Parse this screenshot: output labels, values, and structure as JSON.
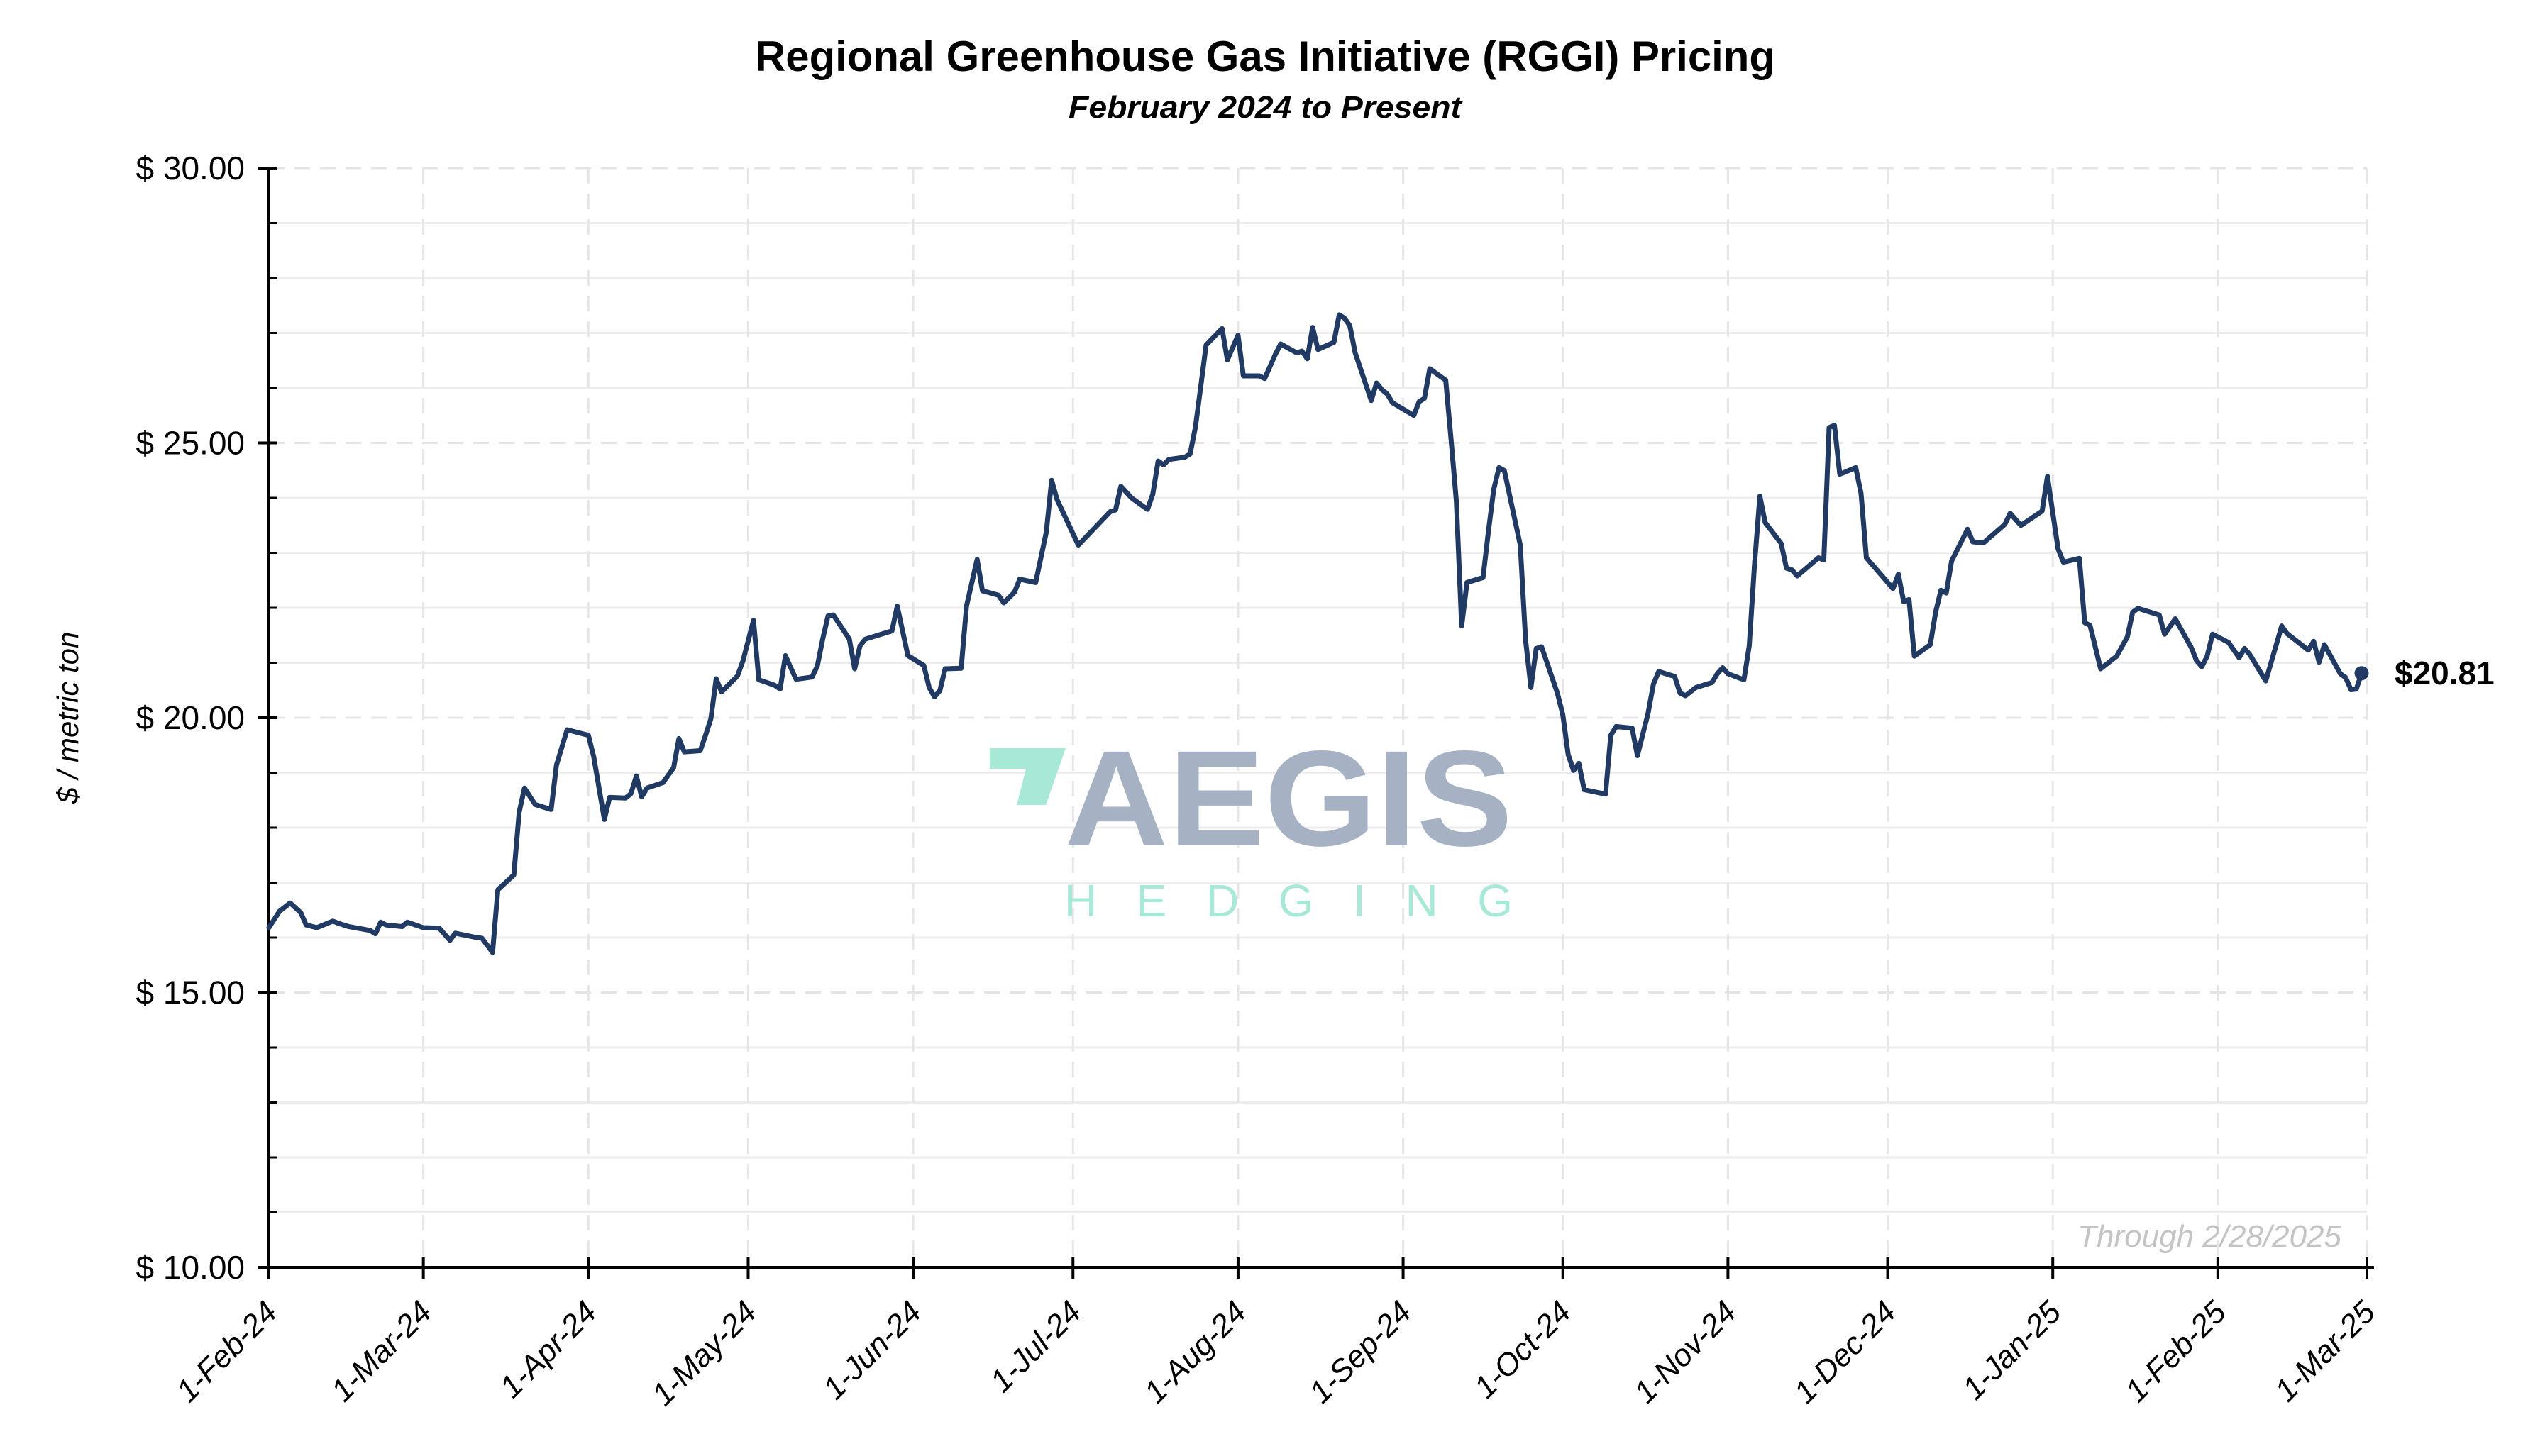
{
  "chart_data": {
    "type": "line",
    "title": "Regional Greenhouse Gas Initiative (RGGI) Pricing",
    "subtitle": "February 2024 to Present",
    "xlabel": "",
    "ylabel": "$ / metric ton",
    "xlim": [
      "2024-02-01",
      "2025-03-01"
    ],
    "ylim": [
      10,
      30
    ],
    "grid": true,
    "y_ticks": [
      {
        "value": 10,
        "label": "$ 10.00"
      },
      {
        "value": 15,
        "label": "$ 15.00"
      },
      {
        "value": 20,
        "label": "$ 20.00"
      },
      {
        "value": 25,
        "label": "$ 25.00"
      },
      {
        "value": 30,
        "label": "$ 30.00"
      }
    ],
    "x_ticks": [
      {
        "date": "2024-02-01",
        "label": "1-Feb-24"
      },
      {
        "date": "2024-03-01",
        "label": "1-Mar-24"
      },
      {
        "date": "2024-04-01",
        "label": "1-Apr-24"
      },
      {
        "date": "2024-05-01",
        "label": "1-May-24"
      },
      {
        "date": "2024-06-01",
        "label": "1-Jun-24"
      },
      {
        "date": "2024-07-01",
        "label": "1-Jul-24"
      },
      {
        "date": "2024-08-01",
        "label": "1-Aug-24"
      },
      {
        "date": "2024-09-01",
        "label": "1-Sep-24"
      },
      {
        "date": "2024-10-01",
        "label": "1-Oct-24"
      },
      {
        "date": "2024-11-01",
        "label": "1-Nov-24"
      },
      {
        "date": "2024-12-01",
        "label": "1-Dec-24"
      },
      {
        "date": "2025-01-01",
        "label": "1-Jan-25"
      },
      {
        "date": "2025-02-01",
        "label": "1-Feb-25"
      },
      {
        "date": "2025-03-01",
        "label": "1-Mar-25"
      }
    ],
    "annotation_through": "Through 2/28/2025",
    "last_value_label": "$20.81",
    "line_color": "#213a64",
    "series": [
      {
        "name": "RGGI Price",
        "x": [
          "2024-02-01",
          "2024-02-03",
          "2024-02-05",
          "2024-02-07",
          "2024-02-08",
          "2024-02-10",
          "2024-02-13",
          "2024-02-14",
          "2024-02-16",
          "2024-02-20",
          "2024-02-21",
          "2024-02-22",
          "2024-02-23",
          "2024-02-26",
          "2024-02-27",
          "2024-03-01",
          "2024-03-04",
          "2024-03-06",
          "2024-03-07",
          "2024-03-11",
          "2024-03-12",
          "2024-03-14",
          "2024-03-15",
          "2024-03-18",
          "2024-03-19",
          "2024-03-20",
          "2024-03-22",
          "2024-03-25",
          "2024-03-26",
          "2024-03-28",
          "2024-04-01",
          "2024-04-02",
          "2024-04-04",
          "2024-04-05",
          "2024-04-08",
          "2024-04-09",
          "2024-04-10",
          "2024-04-11",
          "2024-04-12",
          "2024-04-15",
          "2024-04-17",
          "2024-04-18",
          "2024-04-19",
          "2024-04-22",
          "2024-04-23",
          "2024-04-24",
          "2024-04-25",
          "2024-04-26",
          "2024-04-29",
          "2024-04-30",
          "2024-05-02",
          "2024-05-03",
          "2024-05-06",
          "2024-05-07",
          "2024-05-08",
          "2024-05-09",
          "2024-05-10",
          "2024-05-13",
          "2024-05-14",
          "2024-05-15",
          "2024-05-16",
          "2024-05-17",
          "2024-05-20",
          "2024-05-21",
          "2024-05-22",
          "2024-05-23",
          "2024-05-28",
          "2024-05-29",
          "2024-05-31",
          "2024-06-03",
          "2024-06-04",
          "2024-06-05",
          "2024-06-06",
          "2024-06-07",
          "2024-06-10",
          "2024-06-11",
          "2024-06-13",
          "2024-06-14",
          "2024-06-17",
          "2024-06-18",
          "2024-06-20",
          "2024-06-21",
          "2024-06-24",
          "2024-06-26",
          "2024-06-27",
          "2024-06-28",
          "2024-07-02",
          "2024-07-08",
          "2024-07-09",
          "2024-07-10",
          "2024-07-12",
          "2024-07-15",
          "2024-07-16",
          "2024-07-17",
          "2024-07-18",
          "2024-07-19",
          "2024-07-22",
          "2024-07-23",
          "2024-07-24",
          "2024-07-25",
          "2024-07-26",
          "2024-07-29",
          "2024-07-30",
          "2024-08-01",
          "2024-08-02",
          "2024-08-05",
          "2024-08-06",
          "2024-08-08",
          "2024-08-09",
          "2024-08-12",
          "2024-08-13",
          "2024-08-14",
          "2024-08-15",
          "2024-08-16",
          "2024-08-19",
          "2024-08-20",
          "2024-08-21",
          "2024-08-22",
          "2024-08-23",
          "2024-08-26",
          "2024-08-27",
          "2024-08-28",
          "2024-08-29",
          "2024-08-30",
          "2024-09-03",
          "2024-09-04",
          "2024-09-05",
          "2024-09-06",
          "2024-09-09",
          "2024-09-10",
          "2024-09-11",
          "2024-09-12",
          "2024-09-13",
          "2024-09-16",
          "2024-09-17",
          "2024-09-18",
          "2024-09-19",
          "2024-09-20",
          "2024-09-23",
          "2024-09-24",
          "2024-09-25",
          "2024-09-26",
          "2024-09-27",
          "2024-09-30",
          "2024-10-01",
          "2024-10-02",
          "2024-10-03",
          "2024-10-04",
          "2024-10-05",
          "2024-10-09",
          "2024-10-10",
          "2024-10-11",
          "2024-10-14",
          "2024-10-15",
          "2024-10-17",
          "2024-10-18",
          "2024-10-19",
          "2024-10-22",
          "2024-10-23",
          "2024-10-24",
          "2024-10-26",
          "2024-10-29",
          "2024-10-30",
          "2024-10-31",
          "2024-11-01",
          "2024-11-04",
          "2024-11-05",
          "2024-11-06",
          "2024-11-07",
          "2024-11-08",
          "2024-11-11",
          "2024-11-12",
          "2024-11-13",
          "2024-11-14",
          "2024-11-18",
          "2024-11-19",
          "2024-11-20",
          "2024-11-21",
          "2024-11-22",
          "2024-11-25",
          "2024-11-26",
          "2024-11-27",
          "2024-12-02",
          "2024-12-03",
          "2024-12-04",
          "2024-12-05",
          "2024-12-06",
          "2024-12-09",
          "2024-12-10",
          "2024-12-11",
          "2024-12-12",
          "2024-12-13",
          "2024-12-16",
          "2024-12-17",
          "2024-12-19",
          "2024-12-23",
          "2024-12-24",
          "2024-12-26",
          "2024-12-30",
          "2024-12-31",
          "2025-01-02",
          "2025-01-03",
          "2025-01-06",
          "2025-01-07",
          "2025-01-08",
          "2025-01-10",
          "2025-01-13",
          "2025-01-15",
          "2025-01-16",
          "2025-01-17",
          "2025-01-21",
          "2025-01-22",
          "2025-01-24",
          "2025-01-27",
          "2025-01-28",
          "2025-01-29",
          "2025-01-30",
          "2025-01-31",
          "2025-02-03",
          "2025-02-05",
          "2025-02-06",
          "2025-02-07",
          "2025-02-10",
          "2025-02-13",
          "2025-02-14",
          "2025-02-18",
          "2025-02-19",
          "2025-02-20",
          "2025-02-21",
          "2025-02-24",
          "2025-02-25",
          "2025-02-26",
          "2025-02-27",
          "2025-02-28"
        ],
        "y": [
          16.18,
          16.48,
          16.63,
          16.45,
          16.23,
          16.18,
          16.3,
          16.26,
          16.2,
          16.13,
          16.07,
          16.28,
          16.23,
          16.2,
          16.28,
          16.18,
          16.17,
          15.95,
          16.08,
          16.0,
          15.99,
          15.73,
          16.87,
          17.14,
          18.28,
          18.72,
          18.42,
          18.33,
          19.14,
          19.78,
          19.68,
          19.29,
          18.15,
          18.55,
          18.54,
          18.62,
          18.94,
          18.56,
          18.72,
          18.82,
          19.09,
          19.62,
          19.38,
          19.4,
          19.68,
          19.98,
          20.71,
          20.47,
          20.76,
          21.03,
          21.77,
          20.69,
          20.59,
          20.52,
          21.13,
          20.91,
          20.7,
          20.74,
          20.94,
          21.43,
          21.85,
          21.87,
          21.43,
          20.89,
          21.31,
          21.43,
          21.58,
          22.03,
          21.13,
          20.95,
          20.55,
          20.38,
          20.49,
          20.89,
          20.9,
          22.03,
          22.88,
          22.31,
          22.23,
          22.09,
          22.28,
          22.52,
          22.46,
          23.38,
          24.32,
          23.97,
          23.14,
          23.75,
          23.78,
          24.21,
          24.0,
          23.79,
          24.07,
          24.67,
          24.6,
          24.7,
          24.74,
          24.8,
          25.29,
          26.03,
          26.78,
          27.08,
          26.51,
          26.96,
          26.22,
          26.22,
          26.17,
          26.61,
          26.8,
          26.64,
          26.67,
          26.53,
          27.1,
          26.7,
          26.83,
          27.33,
          27.27,
          27.13,
          26.64,
          25.77,
          26.09,
          25.97,
          25.89,
          25.73,
          25.5,
          25.75,
          25.81,
          26.35,
          26.14,
          25.07,
          23.94,
          21.67,
          22.46,
          22.55,
          23.38,
          24.15,
          24.55,
          24.5,
          23.14,
          21.41,
          20.55,
          21.26,
          21.29,
          20.44,
          20.05,
          19.33,
          19.04,
          19.17,
          18.69,
          18.61,
          19.68,
          19.84,
          19.81,
          19.31,
          20.08,
          20.61,
          20.84,
          20.75,
          20.45,
          20.4,
          20.55,
          20.64,
          20.8,
          20.91,
          20.8,
          20.69,
          21.31,
          22.8,
          24.03,
          23.55,
          23.17,
          22.72,
          22.69,
          22.58,
          22.91,
          22.87,
          25.28,
          25.32,
          24.43,
          24.55,
          24.08,
          22.91,
          22.35,
          22.61,
          22.11,
          22.15,
          21.12,
          21.33,
          21.92,
          22.32,
          22.27,
          22.85,
          23.43,
          23.2,
          23.18,
          23.52,
          23.72,
          23.5,
          23.76,
          24.39,
          23.07,
          22.83,
          22.9,
          21.73,
          21.68,
          20.89,
          21.12,
          21.47,
          21.92,
          21.99,
          21.87,
          21.52,
          21.8,
          21.28,
          21.04,
          20.93,
          21.12,
          21.52,
          21.37,
          21.09,
          21.26,
          21.15,
          20.67,
          21.67,
          21.53,
          21.23,
          21.39,
          21.01,
          21.33,
          20.8,
          20.73,
          20.51,
          20.52,
          20.81
        ]
      }
    ]
  },
  "watermark": {
    "brand": "AEGIS",
    "tagline": "HEDGING",
    "brand_color": "#a6b1c4",
    "accent_color": "#a8e8d6"
  }
}
